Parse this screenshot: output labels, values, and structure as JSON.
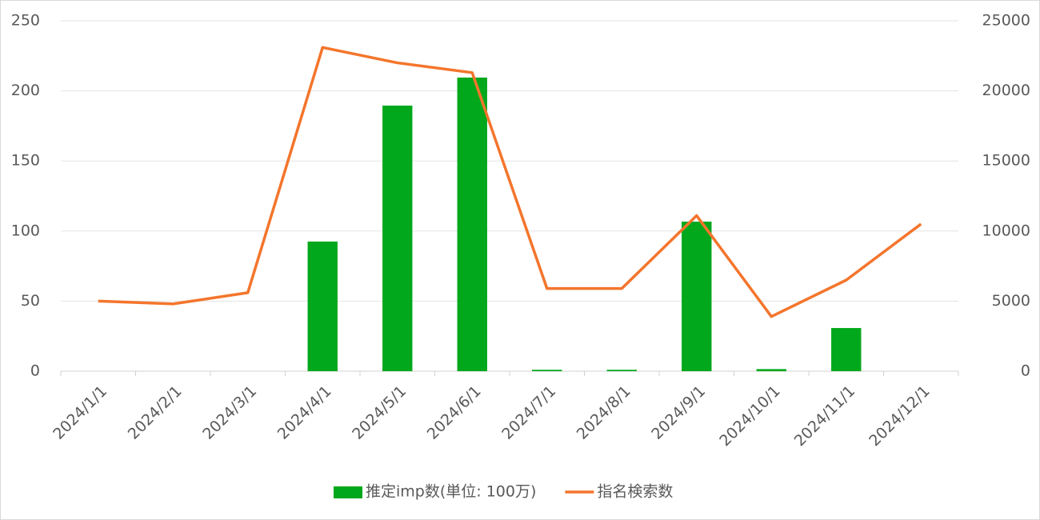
{
  "chart_data": {
    "type": "combo",
    "categories": [
      "2024/1/1",
      "2024/2/1",
      "2024/3/1",
      "2024/4/1",
      "2024/5/1",
      "2024/6/1",
      "2024/7/1",
      "2024/8/1",
      "2024/9/1",
      "2024/10/1",
      "2024/11/1",
      "2024/12/1"
    ],
    "series": [
      {
        "name": "推定imp数(単位: 100万)",
        "type": "bar",
        "color": "#02a81c",
        "axis": "y",
        "values": [
          0,
          0,
          0,
          92.5,
          189.5,
          209.5,
          1,
          1,
          106.7,
          1.5,
          30.8,
          0
        ]
      },
      {
        "name": "指名検索数",
        "type": "line",
        "color": "#f4752c",
        "axis": "y2",
        "values": [
          5000,
          4800,
          5600,
          23100,
          22000,
          21300,
          5900,
          5900,
          11100,
          3900,
          6500,
          10500
        ]
      }
    ],
    "ylim": [
      0,
      250
    ],
    "yticks": [
      0,
      50,
      100,
      150,
      200,
      250
    ],
    "y2lim": [
      0,
      25000
    ],
    "y2ticks": [
      0,
      5000,
      10000,
      15000,
      20000,
      25000
    ],
    "grid": true,
    "legend": "bottom"
  }
}
